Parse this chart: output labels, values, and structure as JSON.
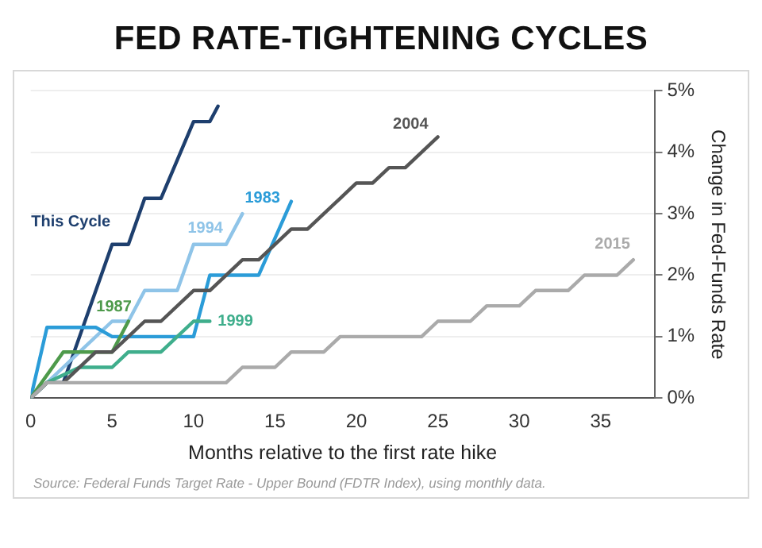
{
  "chart_data": {
    "type": "line",
    "title": "FED RATE-TIGHTENING CYCLES",
    "xlabel": "Months relative to the first rate hike",
    "ylabel": "Change in Fed-Funds Rate",
    "xlim": [
      0,
      38.3
    ],
    "xticks": [
      0,
      5,
      10,
      15,
      20,
      25,
      30,
      35
    ],
    "ylim": [
      0,
      5
    ],
    "yticks": [
      {
        "value": 0,
        "label": "0%"
      },
      {
        "value": 1,
        "label": "1%"
      },
      {
        "value": 2,
        "label": "2%"
      },
      {
        "value": 3,
        "label": "3%"
      },
      {
        "value": 4,
        "label": "4%"
      },
      {
        "value": 5,
        "label": "5%"
      }
    ],
    "grid": "y",
    "legend": false,
    "marker": "none",
    "line_style": "solid",
    "annotations": [
      "Source: Federal Funds Target Rate - Upper Bound (FDTR Index), using monthly data."
    ],
    "series": [
      {
        "name": "2015",
        "color": "#aaaaaa",
        "x": [
          0,
          1,
          12,
          13,
          15,
          16,
          18,
          19,
          24,
          25,
          27,
          28,
          30,
          31,
          33,
          34,
          36,
          37
        ],
        "values": [
          0,
          0.25,
          0.25,
          0.5,
          0.5,
          0.75,
          0.75,
          1.0,
          1.0,
          1.25,
          1.25,
          1.5,
          1.5,
          1.75,
          1.75,
          2.0,
          2.0,
          2.25
        ]
      },
      {
        "name": "2004",
        "color": "#555555",
        "x": [
          0,
          1,
          2,
          4,
          5,
          6,
          7,
          8,
          10,
          11,
          13,
          14,
          16,
          17,
          19,
          20,
          21,
          22,
          23,
          25
        ],
        "values": [
          0,
          0.25,
          0.25,
          0.75,
          0.75,
          1.0,
          1.25,
          1.25,
          1.75,
          1.75,
          2.25,
          2.25,
          2.75,
          2.75,
          3.25,
          3.5,
          3.5,
          3.75,
          3.75,
          4.25
        ]
      },
      {
        "name": "1999",
        "color": "#3fae8c",
        "x": [
          0,
          1,
          3,
          5,
          6,
          8,
          10,
          11
        ],
        "values": [
          0,
          0.25,
          0.5,
          0.5,
          0.75,
          0.75,
          1.25,
          1.25
        ]
      },
      {
        "name": "1987",
        "color": "#4e9a4b",
        "x": [
          0,
          2,
          5,
          6
        ],
        "values": [
          0,
          0.75,
          0.75,
          1.25
        ]
      },
      {
        "name": "1983",
        "color": "#2b9cd8",
        "x": [
          0,
          1,
          4,
          5,
          10,
          11,
          14,
          16
        ],
        "values": [
          0,
          1.15,
          1.15,
          1.0,
          1.0,
          2.0,
          2.0,
          3.2
        ]
      },
      {
        "name": "1994",
        "color": "#8fc4e8",
        "x": [
          0,
          1,
          2,
          3,
          5,
          6,
          7,
          9,
          10,
          12,
          13
        ],
        "values": [
          0,
          0.25,
          0.5,
          0.75,
          1.25,
          1.25,
          1.75,
          1.75,
          2.5,
          2.5,
          3.0
        ]
      },
      {
        "name": "This Cycle",
        "color": "#1e3f6e",
        "x": [
          0,
          1,
          2,
          5,
          6,
          7,
          8,
          10,
          11,
          11.5
        ],
        "values": [
          0,
          0.25,
          0.25,
          2.5,
          2.5,
          3.25,
          3.25,
          4.5,
          4.5,
          4.75
        ]
      }
    ]
  }
}
